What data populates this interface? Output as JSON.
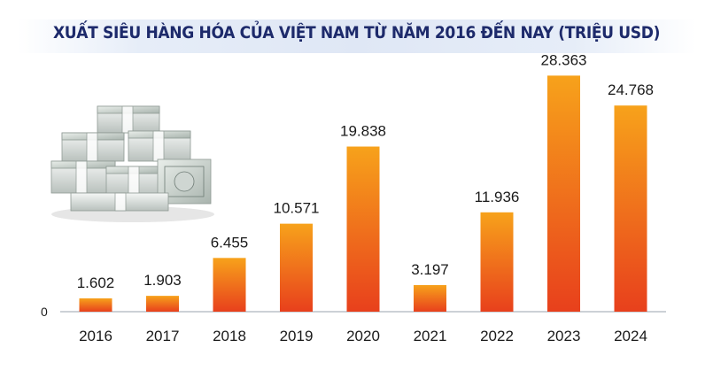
{
  "chart_data": {
    "type": "bar",
    "title": "XUẤT SIÊU HÀNG HÓA CỦA VIỆT NAM TỪ NĂM 2016 ĐẾN NAY (TRIỆU USD)",
    "categories": [
      "2016",
      "2017",
      "2018",
      "2019",
      "2020",
      "2021",
      "2022",
      "2023",
      "2024"
    ],
    "values": [
      1602,
      1903,
      6455,
      10571,
      19838,
      3197,
      11936,
      28363,
      24768
    ],
    "value_labels": [
      "1.602",
      "1.903",
      "6.455",
      "10.571",
      "19.838",
      "3.197",
      "11.936",
      "28.363",
      "24.768"
    ],
    "y_tick_label": "0",
    "ylim": [
      0,
      30000
    ],
    "grid": false,
    "legend": "none",
    "colors": {
      "bar_top": "#f7a21b",
      "bar_bottom": "#e8401c",
      "title": "#1d2a6b",
      "axis": "#9aa3ad"
    },
    "decoration": "money-stacks-icon"
  }
}
